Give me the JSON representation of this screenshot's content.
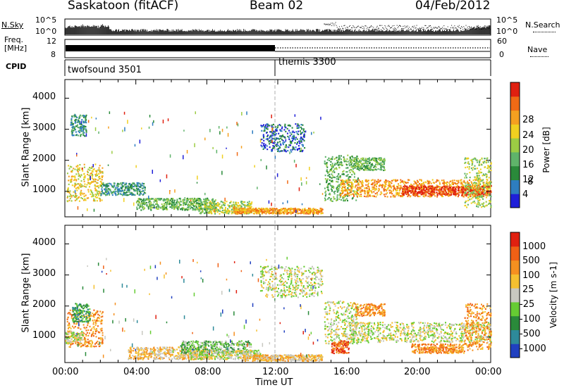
{
  "header": {
    "station": "Saskatoon (fitACF)",
    "beam": "Beam 02",
    "date": "04/Feb/2012"
  },
  "noise_panel": {
    "left_label": "N.Sky",
    "left_ticks": [
      "10^5",
      "10^0"
    ],
    "right_label": "N.Search",
    "right_ticks": [
      "10^5",
      "10^0"
    ]
  },
  "freq_panel": {
    "left_label_line1": "Freq.",
    "left_label_line2": "[MHz]",
    "left_ticks": [
      "12",
      "8"
    ],
    "right_label": "Nave",
    "right_ticks": [
      "60",
      "0"
    ]
  },
  "cpid": {
    "label": "CPID",
    "segments": [
      {
        "name": "twofsound 3501",
        "start_hour": 0
      },
      {
        "name": "themis 3300",
        "start_hour": 12
      }
    ]
  },
  "chart_data": [
    {
      "type": "heatmap",
      "panel": "power",
      "ylabel": "Slant Range [km]",
      "yticks": [
        1000,
        2000,
        3000,
        4000
      ],
      "ylim": [
        180,
        4600
      ],
      "xlim": [
        0,
        24
      ],
      "colorbar_label": "Power [dB]",
      "colorbar_ticks": [
        "4",
        "8",
        "12",
        "16",
        "20",
        "24",
        "28"
      ],
      "colorbar_colors": [
        "#1f1fd9",
        "#2e7dc0",
        "#2a8a3a",
        "#5fb36a",
        "#9ccc44",
        "#f0d020",
        "#f5a020",
        "#f06a15",
        "#e02010"
      ],
      "scatter_bands": [
        {
          "t0": 0.1,
          "t1": 2.1,
          "r0": 700,
          "r1": 1900,
          "level": 5
        },
        {
          "t0": 0.3,
          "t1": 1.2,
          "r0": 2800,
          "r1": 3500,
          "level": 2
        },
        {
          "t0": 2.0,
          "t1": 4.5,
          "r0": 900,
          "r1": 1300,
          "level": 2
        },
        {
          "t0": 4.0,
          "t1": 8.5,
          "r0": 420,
          "r1": 800,
          "level": 3
        },
        {
          "t0": 7.5,
          "t1": 10.5,
          "r0": 300,
          "r1": 700,
          "level": 4
        },
        {
          "t0": 9.5,
          "t1": 14.5,
          "r0": 300,
          "r1": 480,
          "level": 6
        },
        {
          "t0": 11.0,
          "t1": 13.5,
          "r0": 2300,
          "r1": 3200,
          "level": 1
        },
        {
          "t0": 14.6,
          "t1": 16.5,
          "r0": 700,
          "r1": 2200,
          "level": 3
        },
        {
          "t0": 16.0,
          "t1": 18.0,
          "r0": 1700,
          "r1": 2100,
          "level": 3
        },
        {
          "t0": 15.5,
          "t1": 24.0,
          "r0": 850,
          "r1": 1400,
          "level": 6
        },
        {
          "t0": 19.0,
          "t1": 24.0,
          "r0": 900,
          "r1": 1200,
          "level": 8
        },
        {
          "t0": 22.5,
          "t1": 24.0,
          "r0": 500,
          "r1": 2100,
          "level": 4
        }
      ]
    },
    {
      "type": "heatmap",
      "panel": "velocity",
      "ylabel": "Slant Range [km]",
      "yticks": [
        1000,
        2000,
        3000,
        4000
      ],
      "ylim": [
        180,
        4600
      ],
      "xlim": [
        0,
        24
      ],
      "xticks": [
        "00:00",
        "04:00",
        "08:00",
        "12:00",
        "16:00",
        "20:00",
        "00:00"
      ],
      "xlabel": "Time UT",
      "colorbar_label": "Velocity [m s-1]",
      "colorbar_ticks": [
        "1000",
        "500",
        "100",
        "25",
        "-25",
        "-100",
        "-500",
        "-1000"
      ],
      "colorbar_colors": [
        "#2040c0",
        "#2e8a9a",
        "#2a8a3a",
        "#66cc33",
        "#c8c8c0",
        "#f5c030",
        "#f59020",
        "#f06015",
        "#e02010"
      ],
      "scatter_bands": [
        {
          "t0": 0.1,
          "t1": 2.1,
          "r0": 700,
          "r1": 1900,
          "level": 6
        },
        {
          "t0": 0.4,
          "t1": 1.4,
          "r0": 1500,
          "r1": 2100,
          "level": 2
        },
        {
          "t0": 0.0,
          "t1": 1.0,
          "r0": 800,
          "r1": 1200,
          "level": 4
        },
        {
          "t0": 3.5,
          "t1": 8.0,
          "r0": 300,
          "r1": 700,
          "level": 5
        },
        {
          "t0": 6.5,
          "t1": 10.5,
          "r0": 500,
          "r1": 900,
          "level": 3
        },
        {
          "t0": 7.0,
          "t1": 11.0,
          "r0": 300,
          "r1": 600,
          "level": 4
        },
        {
          "t0": 10.0,
          "t1": 14.5,
          "r0": 250,
          "r1": 450,
          "level": 5
        },
        {
          "t0": 11.0,
          "t1": 14.5,
          "r0": 2300,
          "r1": 3300,
          "level": 4
        },
        {
          "t0": 14.6,
          "t1": 16.5,
          "r0": 800,
          "r1": 2200,
          "level": 4
        },
        {
          "t0": 15.0,
          "t1": 16.0,
          "r0": 500,
          "r1": 900,
          "level": 7
        },
        {
          "t0": 16.3,
          "t1": 18.0,
          "r0": 1700,
          "r1": 2100,
          "level": 6
        },
        {
          "t0": 16.0,
          "t1": 24.0,
          "r0": 850,
          "r1": 1500,
          "level": 4
        },
        {
          "t0": 19.5,
          "t1": 22.5,
          "r0": 500,
          "r1": 800,
          "level": 6
        },
        {
          "t0": 22.5,
          "t1": 24.0,
          "r0": 600,
          "r1": 2100,
          "level": 6
        }
      ]
    }
  ]
}
